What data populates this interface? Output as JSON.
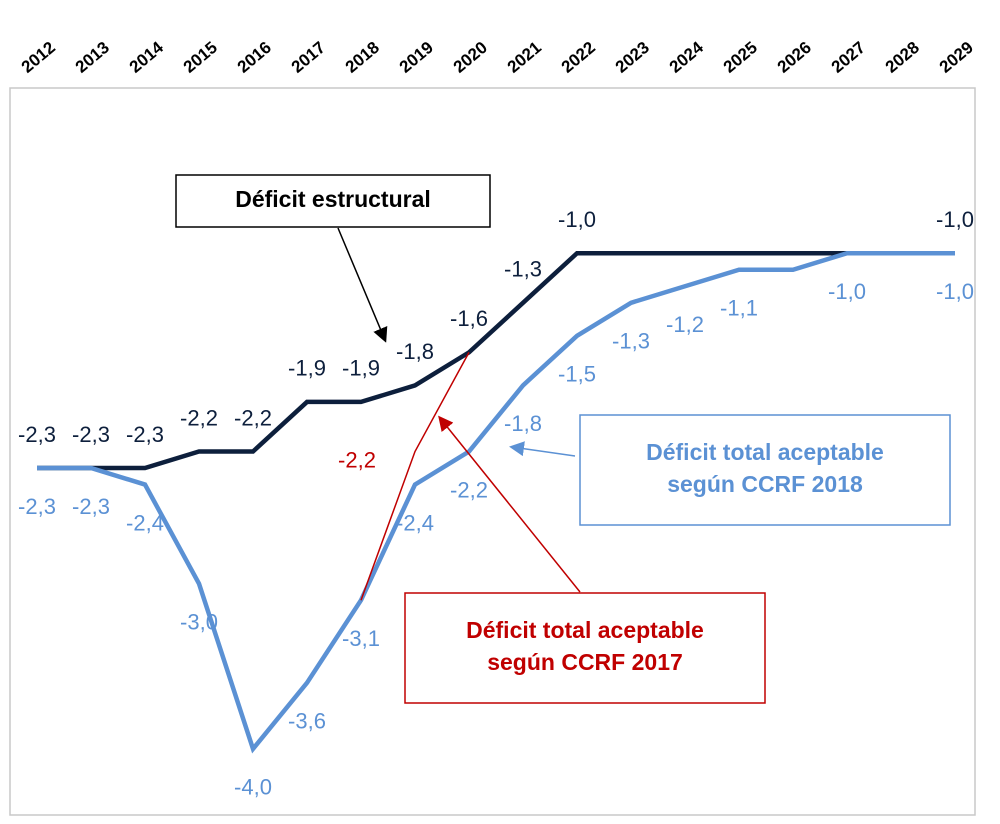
{
  "chart_data": {
    "type": "line",
    "categories": [
      "2012",
      "2013",
      "2014",
      "2015",
      "2016",
      "2017",
      "2018",
      "2019",
      "2020",
      "2021",
      "2022",
      "2023",
      "2024",
      "2025",
      "2026",
      "2027",
      "2028",
      "2029"
    ],
    "ylim": [
      -4.4,
      0
    ],
    "series": [
      {
        "name": "Déficit estructural",
        "color": "#0d1f3c",
        "values": [
          -2.3,
          -2.3,
          -2.3,
          -2.2,
          -2.2,
          -1.9,
          -1.9,
          -1.8,
          -1.6,
          -1.3,
          -1.0,
          -1.0,
          -1.0,
          -1.0,
          -1.0,
          -1.0,
          -1.0,
          -1.0
        ],
        "value_labels": [
          "-2,3",
          "-2,3",
          "-2,3",
          "-2,2",
          "-2,2",
          "-1,9",
          "-1,9",
          "-1,8",
          "-1,6",
          "-1,3",
          "-1,0",
          null,
          null,
          null,
          null,
          null,
          null,
          "-1,0"
        ]
      },
      {
        "name": "Déficit total aceptable según CCRF 2018",
        "color": "#5b91d4",
        "values": [
          -2.3,
          -2.3,
          -2.4,
          -3.0,
          -4.0,
          -3.6,
          -3.1,
          -2.4,
          -2.2,
          -1.8,
          -1.5,
          -1.3,
          -1.2,
          -1.1,
          -1.1,
          -1.0,
          -1.0,
          -1.0
        ],
        "value_labels": [
          "-2,3",
          "-2,3",
          "-2,4",
          "-3,0",
          "-4,0",
          "-3,6",
          "-3,1",
          "-2,4",
          "-2,2",
          "-1,8",
          "-1,5",
          "-1,3",
          "-1,2",
          "-1,1",
          null,
          "-1,0",
          null,
          "-1,0"
        ]
      },
      {
        "name": "Déficit total aceptable según CCRF 2017",
        "color": "#c00000",
        "values": [
          null,
          null,
          null,
          null,
          null,
          null,
          -3.1,
          -2.2,
          -1.6,
          null,
          null,
          null,
          null,
          null,
          null,
          null,
          null,
          null
        ],
        "value_labels": [
          null,
          null,
          null,
          null,
          null,
          null,
          null,
          "-2,2",
          null,
          null,
          null,
          null,
          null,
          null,
          null,
          null,
          null,
          null
        ]
      }
    ],
    "annotations": [
      {
        "lines": [
          "Déficit estructural"
        ],
        "color": "#000000"
      },
      {
        "lines": [
          "Déficit total aceptable",
          "según CCRF 2018"
        ],
        "color": "#5b91d4"
      },
      {
        "lines": [
          "Déficit total aceptable",
          "según CCRF 2017"
        ],
        "color": "#c00000"
      }
    ]
  }
}
